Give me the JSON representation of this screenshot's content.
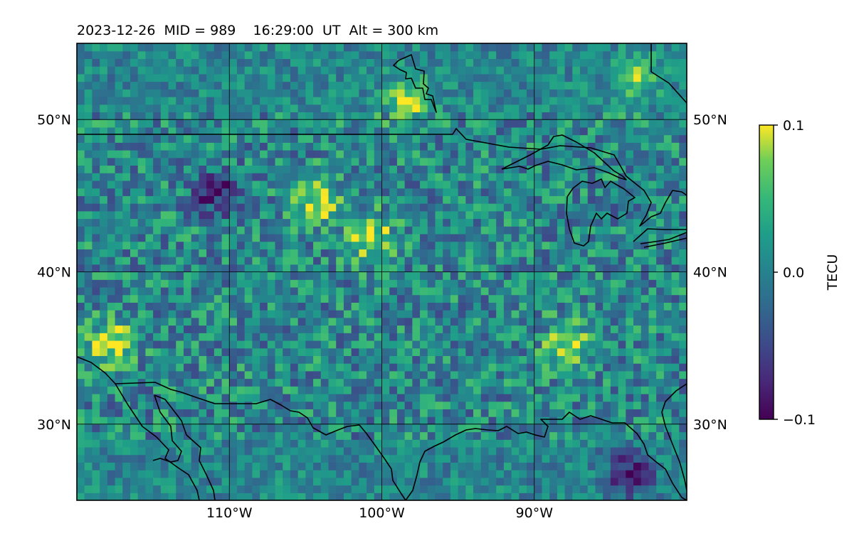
{
  "chart_data": {
    "type": "heatmap",
    "title": "2023-12-26  MID = 989    16:29:00  UT  Alt = 300 km",
    "date": "2023-12-26",
    "mid": 989,
    "time_ut": "16:29:00",
    "altitude_km": 300,
    "map": {
      "lon_range": [
        -120,
        -80
      ],
      "lat_range": [
        25,
        55
      ],
      "grid": true,
      "lon_ticks": [
        {
          "value": -110,
          "label": "110°W"
        },
        {
          "value": -100,
          "label": "100°W"
        },
        {
          "value": -90,
          "label": "90°W"
        }
      ],
      "lat_ticks": [
        {
          "value": 30,
          "label": "30°N"
        },
        {
          "value": 40,
          "label": "40°N"
        },
        {
          "value": 50,
          "label": "50°N"
        }
      ]
    },
    "colorbar": {
      "label": "TECU",
      "colormap": "viridis",
      "vmin": -0.1,
      "vmax": 0.1,
      "ticks": [
        {
          "value": 0.1,
          "label": "0.1"
        },
        {
          "value": 0.0,
          "label": "0.0"
        },
        {
          "value": -0.1,
          "label": "−0.1"
        }
      ]
    },
    "notable_features": [
      {
        "lon": -111,
        "lat": 45,
        "value": -0.1
      },
      {
        "lon": -104.5,
        "lat": 44.5,
        "value": 0.1
      },
      {
        "lon": -101,
        "lat": 42,
        "value": 0.1
      },
      {
        "lon": -98.5,
        "lat": 51,
        "value": 0.1
      },
      {
        "lon": -83.5,
        "lat": 52.5,
        "value": 0.07
      },
      {
        "lon": -84,
        "lat": 26.5,
        "value": -0.1
      },
      {
        "lon": -118,
        "lat": 35,
        "value": 0.1
      },
      {
        "lon": -88,
        "lat": 35,
        "value": 0.1
      }
    ]
  }
}
